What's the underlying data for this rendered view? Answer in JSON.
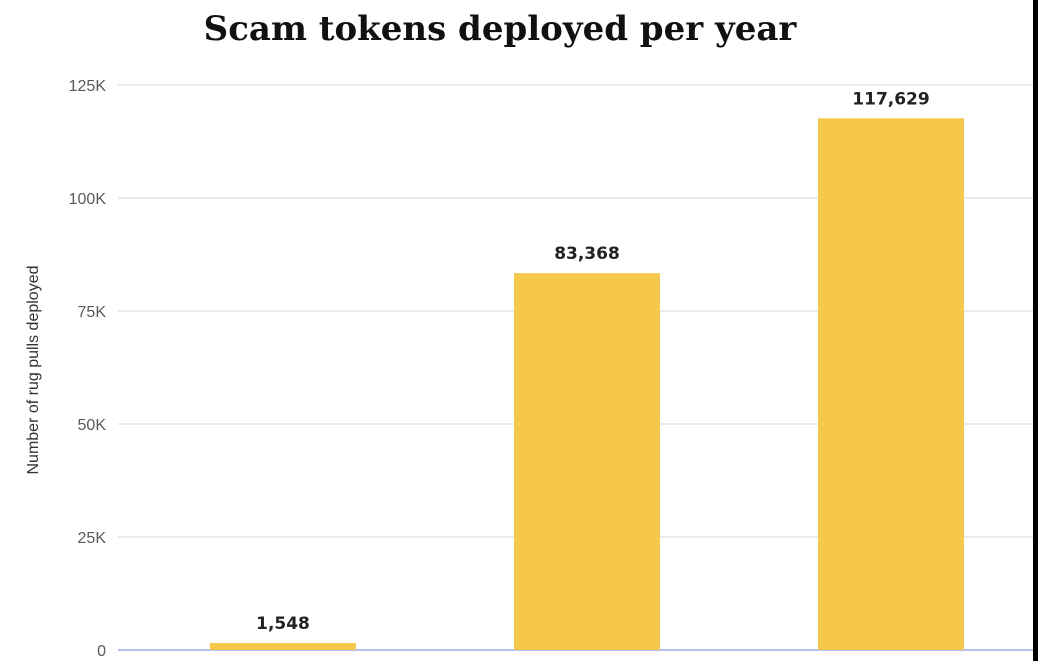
{
  "chart_data": {
    "type": "bar",
    "title": "Scam tokens deployed per year",
    "xlabel": "",
    "ylabel": "Number of rug pulls deployed",
    "categories": [
      "",
      "",
      ""
    ],
    "values": [
      1548,
      83368,
      117629
    ],
    "value_labels": [
      "1,548",
      "83,368",
      "117,629"
    ],
    "ylim": [
      0,
      125000
    ],
    "yticks": [
      0,
      25000,
      50000,
      75000,
      100000,
      125000
    ],
    "ytick_labels": [
      "0",
      "25K",
      "50K",
      "75K",
      "100K",
      "125K"
    ],
    "grid": true,
    "legend": "none",
    "colors": {
      "bar": "#f5c84c",
      "grid": "#e3e3ea",
      "baseline": "#b9bdf0"
    }
  }
}
